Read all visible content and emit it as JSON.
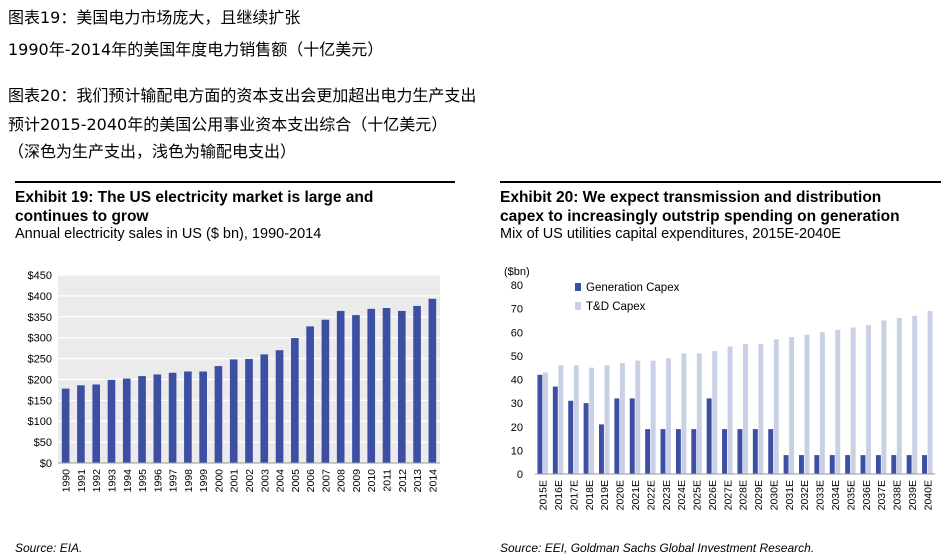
{
  "header_cn": {
    "line1": "图表19：美国电力市场庞大，且继续扩张",
    "line2": "1990年-2014年的美国年度电力销售额（十亿美元）",
    "line3": "图表20：我们预计输配电方面的资本支出会更加超出电力生产支出",
    "line4": "预计2015-2040年的美国公用事业资本支出综合（十亿美元）",
    "line5": "（深色为生产支出，浅色为输配电支出）"
  },
  "exhibit19": {
    "title_line1": "Exhibit 19: The US electricity market is large and",
    "title_line2": "continues to grow",
    "subtitle": "Annual electricity sales in US ($ bn), 1990-2014",
    "source": "Source: EIA."
  },
  "exhibit20": {
    "title_line1": "Exhibit 20: We expect transmission and distribution",
    "title_line2": "capex to increasingly outstrip spending on generation",
    "subtitle": "Mix of US utilities capital expenditures, 2015E-2040E",
    "source": "Source: EEI, Goldman Sachs Global Investment Research."
  },
  "colors": {
    "bar_dark": "#3c4fa3",
    "bar_light": "#c9cfe4",
    "grid": "#ffffff",
    "plot_bg": "#ebebeb"
  },
  "chart_data": [
    {
      "type": "bar",
      "title": "Exhibit 19: The US electricity market is large and continues to grow",
      "subtitle": "Annual electricity sales in US ($ bn), 1990-2014",
      "categories": [
        "1990",
        "1991",
        "1992",
        "1993",
        "1994",
        "1995",
        "1996",
        "1997",
        "1998",
        "1999",
        "2000",
        "2001",
        "2002",
        "2003",
        "2004",
        "2005",
        "2006",
        "2007",
        "2008",
        "2009",
        "2010",
        "2011",
        "2012",
        "2013",
        "2014"
      ],
      "values": [
        178,
        186,
        188,
        199,
        202,
        208,
        212,
        216,
        219,
        219,
        232,
        248,
        249,
        260,
        270,
        299,
        327,
        343,
        364,
        354,
        369,
        371,
        364,
        376,
        393
      ],
      "ylim": [
        0,
        450
      ],
      "yticks": [
        "$0",
        "$50",
        "$100",
        "$150",
        "$200",
        "$250",
        "$300",
        "$350",
        "$400",
        "$450"
      ],
      "grid": true
    },
    {
      "type": "bar",
      "title": "Exhibit 20: We expect transmission and distribution capex to increasingly outstrip spending on generation",
      "subtitle": "Mix of US utilities capital expenditures, 2015E-2040E",
      "ylabel": "($bn)",
      "categories": [
        "2015E",
        "2016E",
        "2017E",
        "2018E",
        "2019E",
        "2020E",
        "2021E",
        "2022E",
        "2023E",
        "2024E",
        "2025E",
        "2026E",
        "2027E",
        "2028E",
        "2029E",
        "2030E",
        "2031E",
        "2032E",
        "2033E",
        "2034E",
        "2035E",
        "2036E",
        "2037E",
        "2038E",
        "2039E",
        "2040E"
      ],
      "series": [
        {
          "name": "Generation Capex",
          "values": [
            42,
            37,
            31,
            30,
            21,
            32,
            32,
            19,
            19,
            19,
            19,
            32,
            19,
            19,
            19,
            19,
            8,
            8,
            8,
            8,
            8,
            8,
            8,
            8,
            8,
            8
          ]
        },
        {
          "name": "T&D Capex",
          "values": [
            43,
            46,
            46,
            45,
            46,
            47,
            48,
            48,
            49,
            51,
            51,
            52,
            54,
            55,
            55,
            57,
            58,
            59,
            60,
            61,
            62,
            63,
            65,
            66,
            67,
            69
          ]
        }
      ],
      "ylim": [
        0,
        80
      ],
      "yticks": [
        "0",
        "10",
        "20",
        "30",
        "40",
        "50",
        "60",
        "70",
        "80"
      ],
      "legend": "top-left",
      "grid": false
    }
  ]
}
